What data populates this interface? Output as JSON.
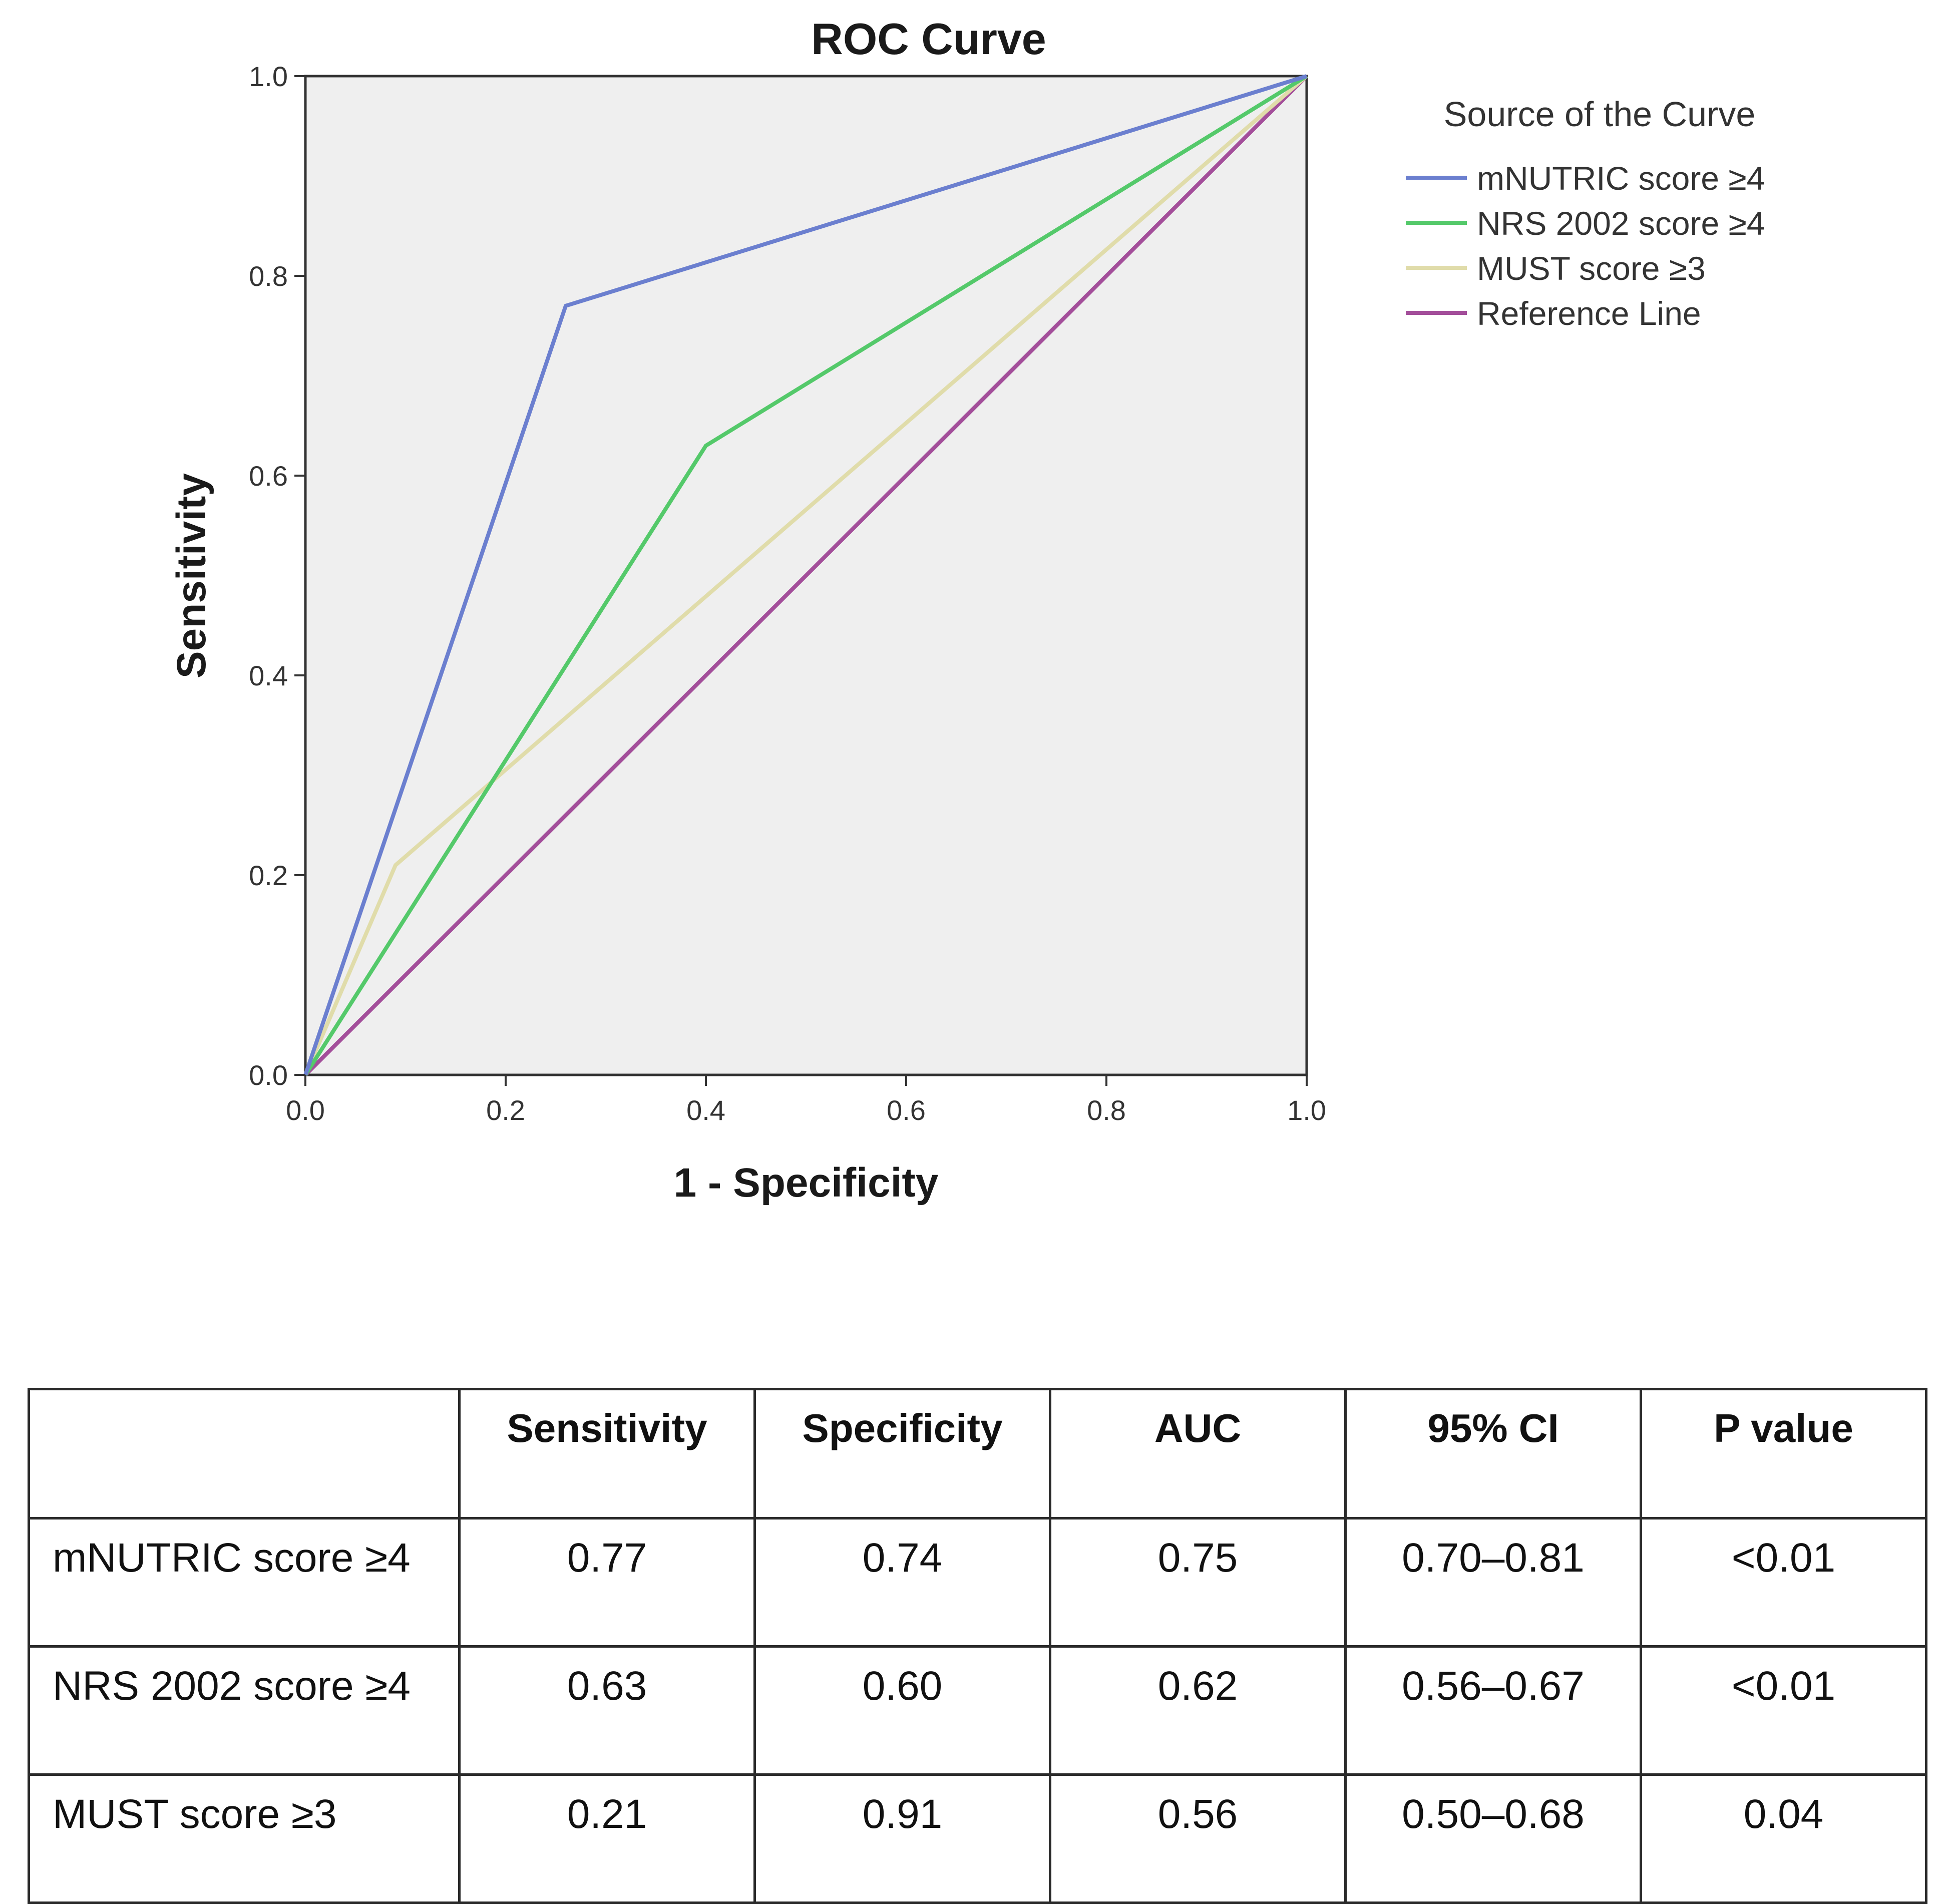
{
  "chart_data": {
    "type": "line",
    "title": "ROC Curve",
    "xlabel": "1 - Specificity",
    "ylabel": "Sensitivity",
    "xlim": [
      0,
      1
    ],
    "ylim": [
      0,
      1
    ],
    "xticks": [
      "0.0",
      "0.2",
      "0.4",
      "0.6",
      "0.8",
      "1.0"
    ],
    "yticks": [
      "0.0",
      "0.2",
      "0.4",
      "0.6",
      "0.8",
      "1.0"
    ],
    "grid": false,
    "plot_background": "#efefef",
    "legend_title": "Source of the Curve",
    "legend_position": "right",
    "series": [
      {
        "name": "mNUTRIC score ≥4",
        "color": "#6b7fcf",
        "x": [
          0,
          0.26,
          1
        ],
        "y": [
          0,
          0.77,
          1
        ]
      },
      {
        "name": "NRS 2002 score ≥4",
        "color": "#54c96a",
        "x": [
          0,
          0.4,
          1
        ],
        "y": [
          0,
          0.63,
          1
        ]
      },
      {
        "name": "MUST score ≥3",
        "color": "#e0dcaa",
        "x": [
          0,
          0.09,
          1
        ],
        "y": [
          0,
          0.21,
          1
        ]
      },
      {
        "name": "Reference Line",
        "color": "#a34e9a",
        "x": [
          0,
          1
        ],
        "y": [
          0,
          1
        ]
      }
    ]
  },
  "table": {
    "headers": [
      "",
      "Sensitivity",
      "Specificity",
      "AUC",
      "95% CI",
      "P value"
    ],
    "rows": [
      [
        "mNUTRIC score ≥4",
        "0.77",
        "0.74",
        "0.75",
        "0.70–0.81",
        "<0.01"
      ],
      [
        "NRS 2002 score ≥4",
        "0.63",
        "0.60",
        "0.62",
        "0.56–0.67",
        "<0.01"
      ],
      [
        "MUST score ≥3",
        "0.21",
        "0.91",
        "0.56",
        "0.50–0.68",
        "0.04"
      ]
    ]
  }
}
